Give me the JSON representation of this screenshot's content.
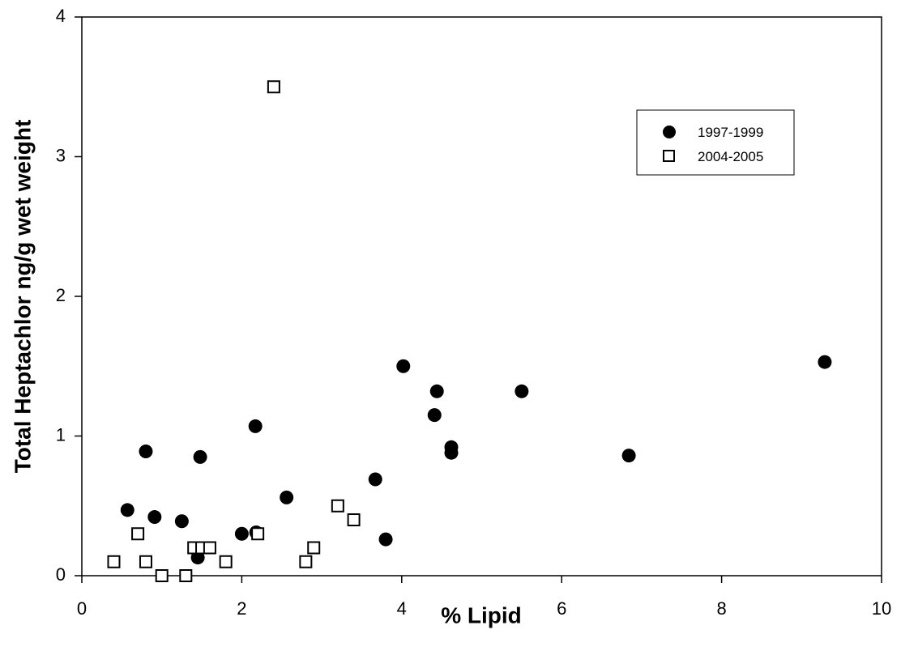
{
  "chart_data": {
    "type": "scatter",
    "xlabel": "% Lipid",
    "ylabel": "Total Heptachlor ng/g wet weight",
    "xlim": [
      0,
      10
    ],
    "ylim": [
      0,
      4
    ],
    "x_ticks": [
      "0",
      "2",
      "4",
      "6",
      "8",
      "10"
    ],
    "y_ticks": [
      "0",
      "1",
      "2",
      "3",
      "4"
    ],
    "grid": false,
    "legend_position": "top-right",
    "series": [
      {
        "name": "1997-1999",
        "marker": "filled-circle",
        "color": "#000000",
        "points": [
          [
            0.57,
            0.47
          ],
          [
            0.8,
            0.89
          ],
          [
            0.91,
            0.42
          ],
          [
            1.25,
            0.39
          ],
          [
            1.45,
            0.13
          ],
          [
            1.48,
            0.85
          ],
          [
            2.0,
            0.3
          ],
          [
            2.17,
            1.07
          ],
          [
            2.18,
            0.31
          ],
          [
            2.56,
            0.56
          ],
          [
            3.67,
            0.69
          ],
          [
            3.8,
            0.26
          ],
          [
            4.02,
            1.5
          ],
          [
            4.41,
            1.15
          ],
          [
            4.44,
            1.32
          ],
          [
            4.62,
            0.92
          ],
          [
            4.62,
            0.88
          ],
          [
            5.5,
            1.32
          ],
          [
            6.84,
            0.86
          ],
          [
            9.29,
            1.53
          ]
        ]
      },
      {
        "name": "2004-2005",
        "marker": "open-square",
        "color": "#000000",
        "points": [
          [
            0.4,
            0.1
          ],
          [
            0.7,
            0.3
          ],
          [
            0.8,
            0.1
          ],
          [
            1.0,
            0.0
          ],
          [
            1.3,
            0.0
          ],
          [
            1.4,
            0.2
          ],
          [
            1.5,
            0.2
          ],
          [
            1.6,
            0.2
          ],
          [
            1.8,
            0.1
          ],
          [
            2.2,
            0.3
          ],
          [
            2.4,
            3.5
          ],
          [
            2.8,
            0.1
          ],
          [
            2.9,
            0.2
          ],
          [
            3.2,
            0.5
          ],
          [
            3.4,
            0.4
          ]
        ]
      }
    ]
  }
}
